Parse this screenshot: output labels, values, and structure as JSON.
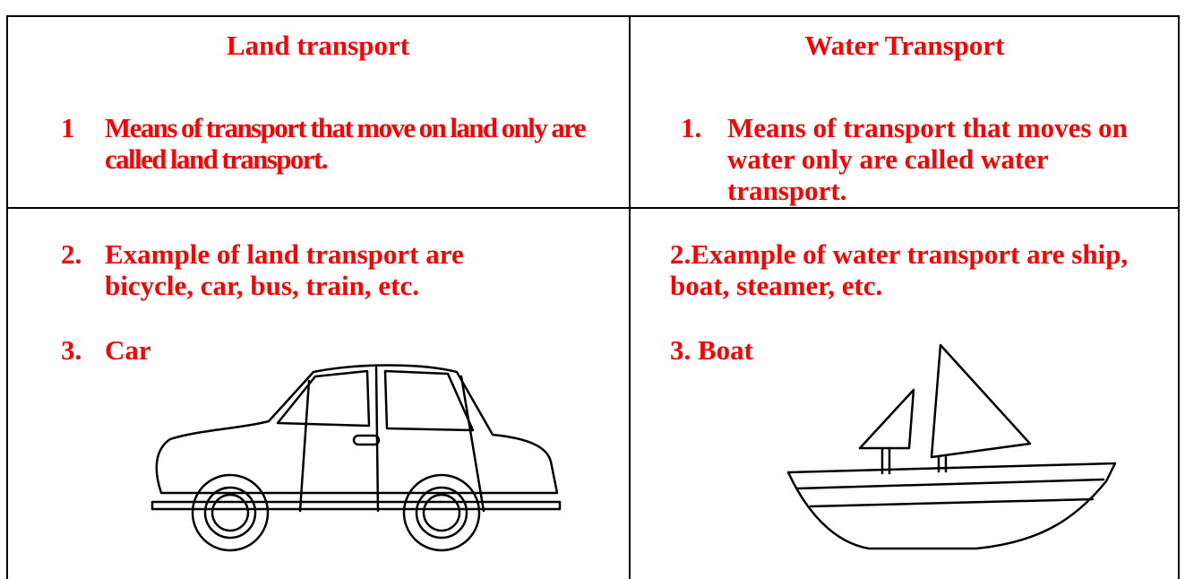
{
  "table": {
    "headers": [
      "Land transport",
      "Water Transport"
    ],
    "rows": [
      [
        {
          "number": "1",
          "text": "Means of transport that move on land only are called land transport."
        },
        {
          "number": "1.",
          "text": "Means of transport that moves on water only are called water transport."
        }
      ],
      [
        [
          {
            "number": "2.",
            "text": "Example of land transport are bicycle, car, bus, train, etc."
          },
          {
            "number": "3.",
            "text": "Car"
          }
        ],
        [
          {
            "number": "2.",
            "text": "Example of water transport are ship, boat, steamer, etc."
          },
          {
            "number": "3.",
            "text": "Boat"
          }
        ]
      ]
    ]
  }
}
